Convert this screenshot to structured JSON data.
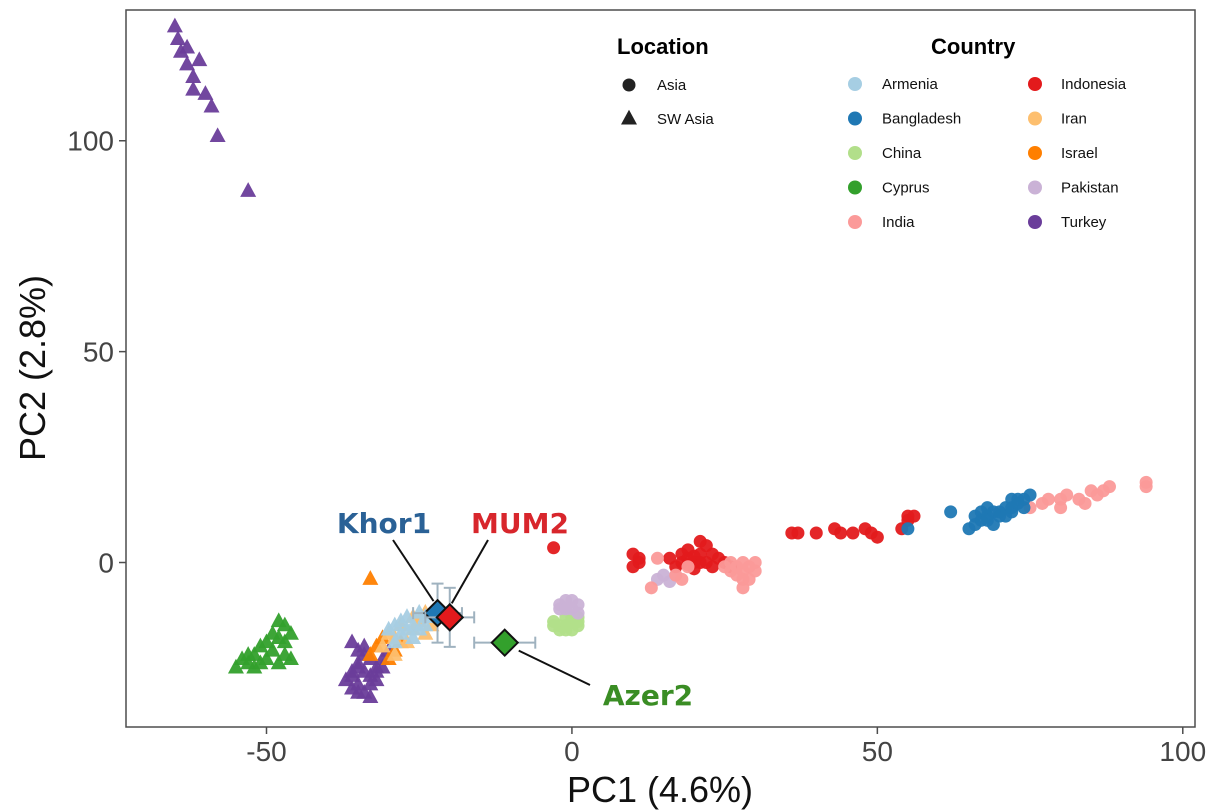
{
  "chart_data": {
    "type": "scatter",
    "xlabel": "PC1 (4.6%)",
    "ylabel": "PC2 (2.8%)",
    "xlim": [
      -73,
      102
    ],
    "ylim": [
      -39,
      131
    ],
    "xticks": [
      -50,
      0,
      50,
      100
    ],
    "yticks": [
      0,
      50,
      100
    ],
    "xtick_labels": [
      "-50",
      "0",
      "50",
      "100"
    ],
    "ytick_labels": [
      "0",
      "50",
      "100"
    ],
    "grid": false,
    "legends": {
      "location": {
        "title": "Location",
        "placement": "top",
        "entries": [
          {
            "label": "Asia",
            "shape": "circle"
          },
          {
            "label": "SW Asia",
            "shape": "triangle"
          }
        ]
      },
      "country": {
        "title": "Country",
        "placement": "top-right",
        "entries": [
          {
            "label": "Armenia",
            "color": "#a6cee3"
          },
          {
            "label": "Bangladesh",
            "color": "#1f78b4"
          },
          {
            "label": "China",
            "color": "#b2df8a"
          },
          {
            "label": "Cyprus",
            "color": "#33a02c"
          },
          {
            "label": "India",
            "color": "#fb9a99"
          },
          {
            "label": "Indonesia",
            "color": "#e31a1c"
          },
          {
            "label": "Iran",
            "color": "#fdbf6f"
          },
          {
            "label": "Israel",
            "color": "#ff7f00"
          },
          {
            "label": "Pakistan",
            "color": "#cab2d6"
          },
          {
            "label": "Turkey",
            "color": "#6a3d9a"
          }
        ]
      }
    },
    "series": [
      {
        "name": "Turkey",
        "color": "#6a3d9a",
        "shape": "triangle",
        "points": [
          [
            -65,
            127
          ],
          [
            -64.5,
            124
          ],
          [
            -64,
            121
          ],
          [
            -63,
            122
          ],
          [
            -63,
            118
          ],
          [
            -62,
            115
          ],
          [
            -61,
            119
          ],
          [
            -62,
            112
          ],
          [
            -60,
            111
          ],
          [
            -59,
            108
          ],
          [
            -58,
            101
          ],
          [
            -53,
            88
          ],
          [
            -36,
            -19
          ],
          [
            -35,
            -21
          ],
          [
            -34,
            -22
          ],
          [
            -35,
            -24
          ],
          [
            -36,
            -27
          ],
          [
            -35,
            -29
          ],
          [
            -33,
            -27
          ],
          [
            -32,
            -25
          ],
          [
            -31,
            -23
          ],
          [
            -30,
            -21
          ],
          [
            -34,
            -31
          ],
          [
            -33,
            -32
          ],
          [
            -36,
            -26
          ],
          [
            -34,
            -20
          ],
          [
            -32,
            -26
          ],
          [
            -33,
            -29
          ],
          [
            -35,
            -31
          ],
          [
            -31,
            -25
          ],
          [
            -37,
            -28
          ],
          [
            -36,
            -30
          ],
          [
            -34,
            -26
          ],
          [
            -32,
            -28
          ],
          [
            -33,
            -23
          ],
          [
            -35,
            -25
          ]
        ]
      },
      {
        "name": "Cyprus",
        "color": "#33a02c",
        "shape": "triangle",
        "points": [
          [
            -55,
            -25
          ],
          [
            -54,
            -23
          ],
          [
            -53,
            -24
          ],
          [
            -52,
            -22
          ],
          [
            -51,
            -20
          ],
          [
            -50,
            -23
          ],
          [
            -49,
            -21
          ],
          [
            -48,
            -18
          ],
          [
            -48,
            -14
          ],
          [
            -47,
            -19
          ],
          [
            -46,
            -23
          ],
          [
            -46,
            -17
          ],
          [
            -47,
            -22
          ],
          [
            -49,
            -17
          ],
          [
            -50,
            -19
          ],
          [
            -52,
            -25
          ],
          [
            -48,
            -24
          ],
          [
            -51,
            -24
          ],
          [
            -53,
            -22
          ],
          [
            -47,
            -15
          ]
        ]
      },
      {
        "name": "Israel",
        "color": "#ff7f00",
        "shape": "triangle",
        "points": [
          [
            -33,
            -4
          ],
          [
            -33,
            -22
          ],
          [
            -32,
            -20
          ],
          [
            -30,
            -23
          ],
          [
            -29,
            -21
          ],
          [
            -31,
            -18
          ],
          [
            -28,
            -19
          ]
        ]
      },
      {
        "name": "Iran",
        "color": "#fdbf6f",
        "shape": "triangle",
        "points": [
          [
            -30,
            -17
          ],
          [
            -29,
            -18
          ],
          [
            -28,
            -15
          ],
          [
            -26,
            -16
          ],
          [
            -27,
            -19
          ],
          [
            -25,
            -14
          ],
          [
            -24,
            -17
          ],
          [
            -23,
            -15
          ],
          [
            -31,
            -20
          ],
          [
            -29,
            -22
          ],
          [
            -26,
            -13
          ],
          [
            -24,
            -12
          ]
        ]
      },
      {
        "name": "Armenia",
        "color": "#a6cee3",
        "shape": "triangle",
        "points": [
          [
            -29,
            -15
          ],
          [
            -28,
            -14
          ],
          [
            -27,
            -16
          ],
          [
            -26,
            -15
          ],
          [
            -25,
            -16
          ],
          [
            -24,
            -13
          ],
          [
            -26,
            -18
          ],
          [
            -28,
            -17
          ],
          [
            -27,
            -13
          ],
          [
            -25,
            -12
          ],
          [
            -30,
            -16
          ],
          [
            -29,
            -19
          ],
          [
            -24,
            -15
          ],
          [
            -23,
            -13
          ]
        ]
      },
      {
        "name": "China",
        "color": "#b2df8a",
        "shape": "circle",
        "points": [
          [
            -3,
            -14
          ],
          [
            -2,
            -15
          ],
          [
            -1,
            -13
          ],
          [
            0,
            -14
          ],
          [
            1,
            -15
          ],
          [
            1,
            -13
          ],
          [
            -2,
            -16
          ],
          [
            0,
            -16
          ],
          [
            -1,
            -15
          ],
          [
            1,
            -14
          ],
          [
            -3,
            -15
          ],
          [
            0,
            -13
          ],
          [
            -1,
            -16
          ]
        ]
      },
      {
        "name": "Pakistan",
        "color": "#cab2d6",
        "shape": "circle",
        "points": [
          [
            -2,
            -10
          ],
          [
            -1,
            -9
          ],
          [
            0,
            -11
          ],
          [
            1,
            -10
          ],
          [
            -2,
            -11
          ],
          [
            0,
            -9
          ],
          [
            1,
            -12
          ],
          [
            -1,
            -11
          ],
          [
            14,
            -4
          ],
          [
            16,
            -4.5
          ],
          [
            17,
            -3
          ],
          [
            15,
            -3
          ]
        ]
      },
      {
        "name": "Indonesia",
        "color": "#e31a1c",
        "shape": "circle",
        "points": [
          [
            -3,
            3.5
          ],
          [
            10,
            2
          ],
          [
            10,
            -1
          ],
          [
            11,
            0
          ],
          [
            11,
            1
          ],
          [
            16,
            1
          ],
          [
            17,
            -1
          ],
          [
            18,
            0
          ],
          [
            18,
            2
          ],
          [
            19,
            1
          ],
          [
            19,
            -0.5
          ],
          [
            19,
            3
          ],
          [
            20,
            0
          ],
          [
            20,
            1.5
          ],
          [
            20,
            -1.5
          ],
          [
            21,
            0
          ],
          [
            21,
            2
          ],
          [
            21,
            5
          ],
          [
            22,
            4
          ],
          [
            22,
            0
          ],
          [
            23,
            2
          ],
          [
            23,
            -1
          ],
          [
            24,
            1
          ],
          [
            25,
            0
          ],
          [
            26,
            -1
          ],
          [
            36,
            7
          ],
          [
            37,
            7
          ],
          [
            40,
            7
          ],
          [
            43,
            8
          ],
          [
            44,
            7
          ],
          [
            46,
            7
          ],
          [
            48,
            8
          ],
          [
            49,
            7
          ],
          [
            50,
            6
          ],
          [
            54,
            8
          ],
          [
            55,
            10
          ],
          [
            55,
            11
          ],
          [
            56,
            11
          ]
        ]
      },
      {
        "name": "India",
        "color": "#fb9a99",
        "shape": "circle",
        "points": [
          [
            13,
            -6
          ],
          [
            14,
            1
          ],
          [
            17,
            -3
          ],
          [
            18,
            -4
          ],
          [
            19,
            -1
          ],
          [
            25,
            -1
          ],
          [
            26,
            -2
          ],
          [
            26,
            0
          ],
          [
            27,
            -3
          ],
          [
            27,
            -1
          ],
          [
            28,
            -2
          ],
          [
            28,
            0
          ],
          [
            28,
            -4
          ],
          [
            28,
            -6
          ],
          [
            29,
            -1
          ],
          [
            29,
            -4
          ],
          [
            30,
            0
          ],
          [
            30,
            -2
          ],
          [
            75,
            13
          ],
          [
            77,
            14
          ],
          [
            78,
            15
          ],
          [
            80,
            15
          ],
          [
            80,
            13
          ],
          [
            81,
            16
          ],
          [
            83,
            15
          ],
          [
            84,
            14
          ],
          [
            85,
            17
          ],
          [
            86,
            16
          ],
          [
            87,
            17
          ],
          [
            88,
            18
          ],
          [
            94,
            19
          ],
          [
            94,
            18
          ]
        ]
      },
      {
        "name": "Bangladesh",
        "color": "#1f78b4",
        "shape": "circle",
        "points": [
          [
            55,
            8
          ],
          [
            62,
            12
          ],
          [
            65,
            8
          ],
          [
            66,
            9
          ],
          [
            67,
            10
          ],
          [
            67,
            12
          ],
          [
            68,
            11
          ],
          [
            68,
            13
          ],
          [
            69,
            12
          ],
          [
            69,
            9
          ],
          [
            70,
            11
          ],
          [
            70,
            12
          ],
          [
            71,
            11
          ],
          [
            71,
            13
          ],
          [
            72,
            12
          ],
          [
            72,
            13
          ],
          [
            72,
            15
          ],
          [
            73,
            14
          ],
          [
            73,
            15
          ],
          [
            74,
            15
          ],
          [
            74,
            13
          ],
          [
            75,
            16
          ],
          [
            68,
            10
          ],
          [
            66,
            11
          ]
        ]
      }
    ],
    "highlighted": [
      {
        "label": "Khor1",
        "x": -22,
        "y": -12,
        "xerr": 4,
        "yerr": 7,
        "color": "#1f78b4",
        "label_color": "#2a6196"
      },
      {
        "label": "MUM2",
        "x": -20,
        "y": -13,
        "xerr": 4,
        "yerr": 7,
        "color": "#e31a1c",
        "label_color": "#d8262c"
      },
      {
        "label": "Azer2",
        "x": -11,
        "y": -19,
        "xerr": 5,
        "yerr": 1.5,
        "color": "#33a02c",
        "label_color": "#3a8d24"
      }
    ]
  }
}
